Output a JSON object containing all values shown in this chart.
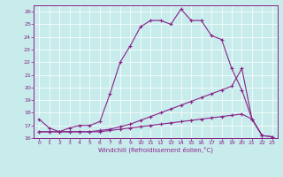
{
  "xlabel": "Windchill (Refroidissement éolien,°C)",
  "background_color": "#c8ecec",
  "line_color": "#882288",
  "xlim": [
    -0.5,
    23.5
  ],
  "ylim": [
    16,
    26.5
  ],
  "xticks": [
    0,
    1,
    2,
    3,
    4,
    5,
    6,
    7,
    8,
    9,
    10,
    11,
    12,
    13,
    14,
    15,
    16,
    17,
    18,
    19,
    20,
    21,
    22,
    23
  ],
  "yticks": [
    16,
    17,
    18,
    19,
    20,
    21,
    22,
    23,
    24,
    25,
    26
  ],
  "seg_main_x": [
    0,
    1,
    2,
    3,
    4,
    5,
    6,
    7,
    8,
    9,
    10,
    11,
    12,
    13,
    14,
    15,
    16,
    17,
    18,
    19,
    20,
    21,
    22
  ],
  "seg_main_y": [
    17.5,
    16.8,
    16.5,
    16.8,
    17.0,
    17.0,
    17.3,
    19.5,
    22.0,
    23.3,
    24.8,
    25.3,
    25.3,
    25.0,
    26.2,
    25.3,
    25.3,
    24.1,
    23.8,
    21.5,
    19.8,
    17.5,
    16.2
  ],
  "seg_low1_x": [
    0,
    1,
    2,
    3,
    4,
    5,
    6,
    7,
    8,
    9,
    10,
    11,
    12,
    13,
    14,
    15,
    16,
    17,
    18,
    19,
    20,
    21,
    22,
    23
  ],
  "seg_low1_y": [
    16.5,
    16.5,
    16.5,
    16.5,
    16.5,
    16.5,
    16.5,
    16.6,
    16.7,
    16.8,
    16.9,
    17.0,
    17.1,
    17.2,
    17.3,
    17.4,
    17.5,
    17.6,
    17.7,
    17.8,
    17.9,
    17.5,
    16.2,
    16.1
  ],
  "seg_low2_x": [
    0,
    1,
    2,
    3,
    4,
    5,
    6,
    7,
    8,
    9,
    10,
    11,
    12,
    13,
    14,
    15,
    16,
    17,
    18,
    19,
    20,
    21,
    22,
    23
  ],
  "seg_low2_y": [
    16.5,
    16.5,
    16.5,
    16.5,
    16.5,
    16.5,
    16.6,
    16.7,
    16.9,
    17.1,
    17.4,
    17.7,
    18.0,
    18.3,
    18.6,
    18.9,
    19.2,
    19.5,
    19.8,
    20.1,
    21.5,
    17.5,
    16.2,
    16.1
  ],
  "marker": "+",
  "markersize": 3,
  "linewidth": 0.8
}
